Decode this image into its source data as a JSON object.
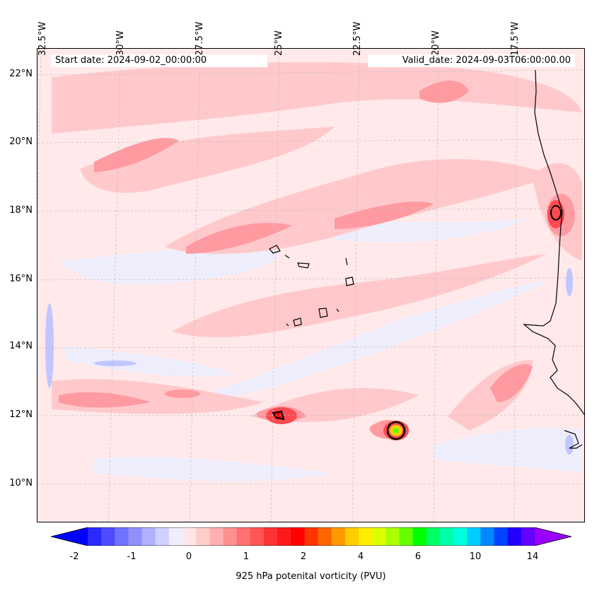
{
  "map": {
    "start_date": "Start date: 2024-09-02_00:00:00",
    "valid_date": "Valid_date: 2024-09-03T06:00:00.00",
    "lon_labels": [
      "32.5°W",
      "30°W",
      "27.5°W",
      "25°W",
      "22.5°W",
      "20°W",
      "17.5°W"
    ],
    "lat_labels": [
      "22°N",
      "20°N",
      "18°N",
      "16°N",
      "14°N",
      "12°N",
      "10°N"
    ],
    "variable": "925 hPa potential vorticity",
    "colors": {
      "background": "#ffe9ea",
      "light_pink": "#ffc9cc",
      "mid_pink": "#ff9aa0",
      "strong_red": "#ff4a52",
      "pale_blue": "#eceeff",
      "coast": "#000000"
    }
  },
  "colorbar": {
    "label": "925 hPa potenital vorticity (PVU)",
    "tick_labels": [
      "-2",
      "-1",
      "0",
      "1",
      "2",
      "4",
      "6",
      "10",
      "14"
    ],
    "colors": [
      "#0000ff",
      "#2a2aff",
      "#4d4dff",
      "#7272ff",
      "#9090ff",
      "#b0b0ff",
      "#d0d0ff",
      "#eeeeff",
      "#ffe6e6",
      "#ffcccc",
      "#ffb0b0",
      "#ff9090",
      "#ff7070",
      "#ff5555",
      "#ff3333",
      "#ff1a1a",
      "#ff0000",
      "#ff3300",
      "#ff6600",
      "#ff9900",
      "#ffcc00",
      "#ffee00",
      "#ddff00",
      "#aaff00",
      "#66ff00",
      "#00ff00",
      "#00ff66",
      "#00ffaa",
      "#00ffdd",
      "#00ccff",
      "#0088ff",
      "#0044ff",
      "#2200ff",
      "#6600ff",
      "#9900ff"
    ]
  }
}
